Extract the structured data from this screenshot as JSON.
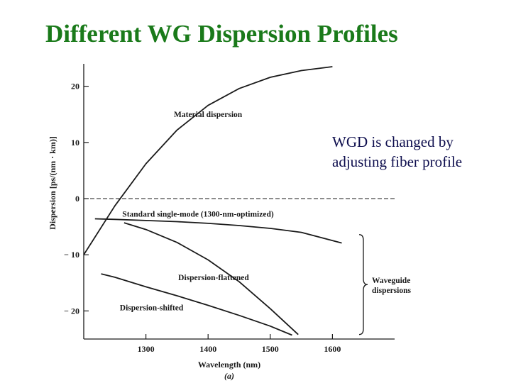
{
  "slide": {
    "title": "Different WG Dispersion Profiles"
  },
  "note": {
    "line1": "WGD is changed by",
    "line2": "adjusting fiber profile"
  },
  "chart_data": {
    "type": "line",
    "xlabel": "Wavelength (nm)",
    "ylabel": "Dispersion [ps/(nm · km)]",
    "caption": "(a)",
    "xlim": [
      1200,
      1700
    ],
    "ylim": [
      -25,
      24
    ],
    "x_ticks": [
      1300,
      1400,
      1500,
      1600
    ],
    "y_ticks": [
      20,
      10,
      0,
      -10,
      -20
    ],
    "y_tick_labels": [
      "20",
      "10",
      "0",
      "− 10",
      "− 20"
    ],
    "grid": false,
    "zero_line": "dashed",
    "series": [
      {
        "name": "Material dispersion",
        "label_at": [
          1345,
          14.5
        ],
        "x": [
          1200,
          1250,
          1300,
          1350,
          1400,
          1450,
          1500,
          1550,
          1600
        ],
        "y": [
          -10,
          -1.3,
          6.2,
          12.2,
          16.6,
          19.6,
          21.6,
          22.8,
          23.5
        ]
      },
      {
        "name": "Standard single-mode (1300-nm-optimized)",
        "label_at": [
          1262,
          -3.2
        ],
        "x": [
          1218,
          1250,
          1300,
          1350,
          1400,
          1450,
          1500,
          1550,
          1615
        ],
        "y": [
          -3.6,
          -3.7,
          -3.9,
          -4.1,
          -4.4,
          -4.8,
          -5.3,
          -6.0,
          -7.9
        ]
      },
      {
        "name": "Dispersion-flattened",
        "label_at": [
          1352,
          -14.5
        ],
        "x": [
          1265,
          1300,
          1350,
          1400,
          1450,
          1500,
          1545
        ],
        "y": [
          -4.3,
          -5.5,
          -7.8,
          -10.9,
          -14.8,
          -19.6,
          -24.2
        ]
      },
      {
        "name": "Dispersion-shifted",
        "label_at": [
          1258,
          -19.9
        ],
        "x": [
          1228,
          1250,
          1300,
          1350,
          1400,
          1450,
          1500,
          1535
        ],
        "y": [
          -13.4,
          -14.0,
          -15.7,
          -17.3,
          -19.0,
          -20.8,
          -22.7,
          -24.3
        ]
      }
    ],
    "bracket_label": [
      "Waveguide",
      "dispersions"
    ]
  }
}
